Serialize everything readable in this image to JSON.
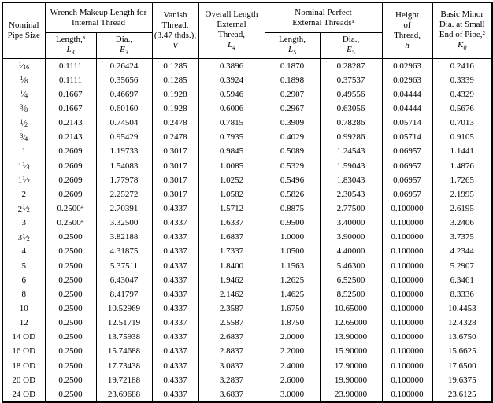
{
  "table": {
    "header": {
      "size_title": "Nominal Pipe Size",
      "wrench_group_title": "Wrench Makeup Length for Internal Thread",
      "l3": {
        "label": "Length,³",
        "sym": "L",
        "sub": "3"
      },
      "e3": {
        "label": "Dia.,",
        "sym": "E",
        "sub": "3"
      },
      "v": {
        "lines": [
          "Vanish",
          "Thread,",
          "(3.47 thds.),"
        ],
        "sym": "V"
      },
      "l4": {
        "lines": [
          "Overall Length",
          "External",
          "Thread,"
        ],
        "sym": "L",
        "sub": "4"
      },
      "perfect_group_title_lines": [
        "Nominal Perfect",
        "External Threads¹"
      ],
      "l5": {
        "label": "Length,",
        "sym": "L",
        "sub": "5"
      },
      "e5": {
        "label": "Dia.,",
        "sym": "E",
        "sub": "5"
      },
      "h": {
        "lines": [
          "Height",
          "of",
          "Thread,"
        ],
        "sym": "h"
      },
      "k0": {
        "lines": [
          "Basic Minor",
          "Dia. at Small",
          "End of Pipe,²"
        ],
        "sym": "K",
        "sub": "0"
      }
    },
    "rows": [
      {
        "size": "1/16",
        "values": [
          "0.1111",
          "0.26424",
          "0.1285",
          "0.3896",
          "0.1870",
          "0.28287",
          "0.02963",
          "0.2416"
        ]
      },
      {
        "size": "1/8",
        "values": [
          "0.1111",
          "0.35656",
          "0.1285",
          "0.3924",
          "0.1898",
          "0.37537",
          "0.02963",
          "0.3339"
        ]
      },
      {
        "size": "1/4",
        "values": [
          "0.1667",
          "0.46697",
          "0.1928",
          "0.5946",
          "0.2907",
          "0.49556",
          "0.04444",
          "0.4329"
        ]
      },
      {
        "size": "3/8",
        "values": [
          "0.1667",
          "0.60160",
          "0.1928",
          "0.6006",
          "0.2967",
          "0.63056",
          "0.04444",
          "0.5676"
        ]
      },
      {
        "size": "1/2",
        "values": [
          "0.2143",
          "0.74504",
          "0.2478",
          "0.7815",
          "0.3909",
          "0.78286",
          "0.05714",
          "0.7013"
        ]
      },
      {
        "size": "3/4",
        "values": [
          "0.2143",
          "0.95429",
          "0.2478",
          "0.7935",
          "0.4029",
          "0.99286",
          "0.05714",
          "0.9105"
        ]
      },
      {
        "size": "1",
        "values": [
          "0.2609",
          "1.19733",
          "0.3017",
          "0.9845",
          "0.5089",
          "1.24543",
          "0.06957",
          "1.1441"
        ]
      },
      {
        "size": "1-1/4",
        "values": [
          "0.2609",
          "1.54083",
          "0.3017",
          "1.0085",
          "0.5329",
          "1.59043",
          "0.06957",
          "1.4876"
        ]
      },
      {
        "size": "1-1/2",
        "values": [
          "0.2609",
          "1.77978",
          "0.3017",
          "1.0252",
          "0.5496",
          "1.83043",
          "0.06957",
          "1.7265"
        ]
      },
      {
        "size": "2",
        "values": [
          "0.2609",
          "2.25272",
          "0.3017",
          "1.0582",
          "0.5826",
          "2.30543",
          "0.06957",
          "2.1995"
        ]
      },
      {
        "size": "2-1/2",
        "values": [
          "0.2500⁴",
          "2.70391",
          "0.4337",
          "1.5712",
          "0.8875",
          "2.77500",
          "0.100000",
          "2.6195"
        ]
      },
      {
        "size": "3",
        "values": [
          "0.2500⁴",
          "3.32500",
          "0.4337",
          "1.6337",
          "0.9500",
          "3.40000",
          "0.100000",
          "3.2406"
        ]
      },
      {
        "size": "3-1/2",
        "values": [
          "0.2500",
          "3.82188",
          "0.4337",
          "1.6837",
          "1.0000",
          "3.90000",
          "0.100000",
          "3.7375"
        ]
      },
      {
        "size": "4",
        "values": [
          "0.2500",
          "4.31875",
          "0.4337",
          "1.7337",
          "1.0500",
          "4.40000",
          "0.100000",
          "4.2344"
        ]
      },
      {
        "size": "5",
        "values": [
          "0.2500",
          "5.37511",
          "0.4337",
          "1.8400",
          "1.1563",
          "5.46300",
          "0.100000",
          "5.2907"
        ]
      },
      {
        "size": "6",
        "values": [
          "0.2500",
          "6.43047",
          "0.4337",
          "1.9462",
          "1.2625",
          "6.52500",
          "0.100000",
          "6.3461"
        ]
      },
      {
        "size": "8",
        "values": [
          "0.2500",
          "8.41797",
          "0.4337",
          "2.1462",
          "1.4625",
          "8.52500",
          "0.100000",
          "8.3336"
        ]
      },
      {
        "size": "10",
        "values": [
          "0.2500",
          "10.52969",
          "0.4337",
          "2.3587",
          "1.6750",
          "10.65000",
          "0.100000",
          "10.4453"
        ]
      },
      {
        "size": "12",
        "values": [
          "0.2500",
          "12.51719",
          "0.4337",
          "2.5587",
          "1.8750",
          "12.65000",
          "0.100000",
          "12.4328"
        ]
      },
      {
        "size": "14 OD",
        "values": [
          "0.2500",
          "13.75938",
          "0.4337",
          "2.6837",
          "2.0000",
          "13.90000",
          "0.100000",
          "13.6750"
        ]
      },
      {
        "size": "16 OD",
        "values": [
          "0.2500",
          "15.74688",
          "0.4337",
          "2.8837",
          "2.2000",
          "15.90000",
          "0.100000",
          "15.6625"
        ]
      },
      {
        "size": "18 OD",
        "values": [
          "0.2500",
          "17.73438",
          "0.4337",
          "3.0837",
          "2.4000",
          "17.90000",
          "0.100000",
          "17.6500"
        ]
      },
      {
        "size": "20 OD",
        "values": [
          "0.2500",
          "19.72188",
          "0.4337",
          "3.2837",
          "2.6000",
          "19.90000",
          "0.100000",
          "19.6375"
        ]
      },
      {
        "size": "24 OD",
        "values": [
          "0.2500",
          "23.69688",
          "0.4337",
          "3.6837",
          "3.0000",
          "23.90000",
          "0.100000",
          "23.6125"
        ]
      }
    ]
  }
}
